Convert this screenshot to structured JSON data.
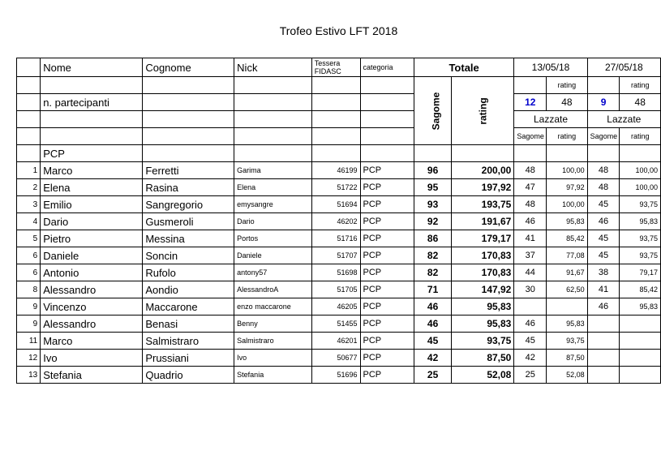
{
  "title": "Trofeo Estivo LFT 2018",
  "headers": {
    "nome": "Nome",
    "cognome": "Cognome",
    "nick": "Nick",
    "tessera_l1": "Tessera",
    "tessera_l2": "FIDASC",
    "categoria": "categoria",
    "totale": "Totale",
    "date1": "13/05/18",
    "date2": "27/05/18",
    "rating": "rating",
    "n_part": "n. partecipanti",
    "sagome_v": "Sagome",
    "rating_v": "rating",
    "place1": "Lazzate",
    "place2": "Lazzate",
    "sub_sag": "Sagome",
    "sub_rat": "rating",
    "count1": "12",
    "maxrat1": "48",
    "count2": "9",
    "maxrat2": "48"
  },
  "category": "PCP",
  "rows": [
    {
      "idx": "1",
      "nome": "Marco",
      "cognome": "Ferretti",
      "nick": "Garima",
      "tess": "46199",
      "cat": "PCP",
      "sag": "96",
      "rat": "200,00",
      "d1a": "48",
      "d1b": "100,00",
      "d2a": "48",
      "d2b": "100,00"
    },
    {
      "idx": "2",
      "nome": "Elena",
      "cognome": "Rasina",
      "nick": "Elena",
      "tess": "51722",
      "cat": "PCP",
      "sag": "95",
      "rat": "197,92",
      "d1a": "47",
      "d1b": "97,92",
      "d2a": "48",
      "d2b": "100,00"
    },
    {
      "idx": "3",
      "nome": "Emilio",
      "cognome": "Sangregorio",
      "nick": "emysangre",
      "tess": "51694",
      "cat": "PCP",
      "sag": "93",
      "rat": "193,75",
      "d1a": "48",
      "d1b": "100,00",
      "d2a": "45",
      "d2b": "93,75"
    },
    {
      "idx": "4",
      "nome": "Dario",
      "cognome": "Gusmeroli",
      "nick": "Dario",
      "tess": "46202",
      "cat": "PCP",
      "sag": "92",
      "rat": "191,67",
      "d1a": "46",
      "d1b": "95,83",
      "d2a": "46",
      "d2b": "95,83"
    },
    {
      "idx": "5",
      "nome": "Pietro",
      "cognome": "Messina",
      "nick": "Portos",
      "tess": "51716",
      "cat": "PCP",
      "sag": "86",
      "rat": "179,17",
      "d1a": "41",
      "d1b": "85,42",
      "d2a": "45",
      "d2b": "93,75"
    },
    {
      "idx": "6",
      "nome": "Daniele",
      "cognome": "Soncin",
      "nick": "Daniele",
      "tess": "51707",
      "cat": "PCP",
      "sag": "82",
      "rat": "170,83",
      "d1a": "37",
      "d1b": "77,08",
      "d2a": "45",
      "d2b": "93,75"
    },
    {
      "idx": "6",
      "nome": "Antonio",
      "cognome": "Rufolo",
      "nick": "antony57",
      "tess": "51698",
      "cat": "PCP",
      "sag": "82",
      "rat": "170,83",
      "d1a": "44",
      "d1b": "91,67",
      "d2a": "38",
      "d2b": "79,17"
    },
    {
      "idx": "8",
      "nome": "Alessandro",
      "cognome": "Aondio",
      "nick": "AlessandroA",
      "tess": "51705",
      "cat": "PCP",
      "sag": "71",
      "rat": "147,92",
      "d1a": "30",
      "d1b": "62,50",
      "d2a": "41",
      "d2b": "85,42"
    },
    {
      "idx": "9",
      "nome": "Vincenzo",
      "cognome": "Maccarone",
      "nick": "enzo maccarone",
      "tess": "46205",
      "cat": "PCP",
      "sag": "46",
      "rat": "95,83",
      "d1a": "",
      "d1b": "",
      "d2a": "46",
      "d2b": "95,83"
    },
    {
      "idx": "9",
      "nome": "Alessandro",
      "cognome": "Benasi",
      "nick": "Benny",
      "tess": "51455",
      "cat": "PCP",
      "sag": "46",
      "rat": "95,83",
      "d1a": "46",
      "d1b": "95,83",
      "d2a": "",
      "d2b": ""
    },
    {
      "idx": "11",
      "nome": "Marco",
      "cognome": "Salmistraro",
      "nick": "Salmistraro",
      "tess": "46201",
      "cat": "PCP",
      "sag": "45",
      "rat": "93,75",
      "d1a": "45",
      "d1b": "93,75",
      "d2a": "",
      "d2b": ""
    },
    {
      "idx": "12",
      "nome": "Ivo",
      "cognome": "Prussiani",
      "nick": "Ivo",
      "tess": "50677",
      "cat": "PCP",
      "sag": "42",
      "rat": "87,50",
      "d1a": "42",
      "d1b": "87,50",
      "d2a": "",
      "d2b": ""
    },
    {
      "idx": "13",
      "nome": "Stefania",
      "cognome": "Quadrio",
      "nick": "Stefania",
      "tess": "51696",
      "cat": "PCP",
      "sag": "25",
      "rat": "52,08",
      "d1a": "25",
      "d1b": "52,08",
      "d2a": "",
      "d2b": ""
    }
  ]
}
